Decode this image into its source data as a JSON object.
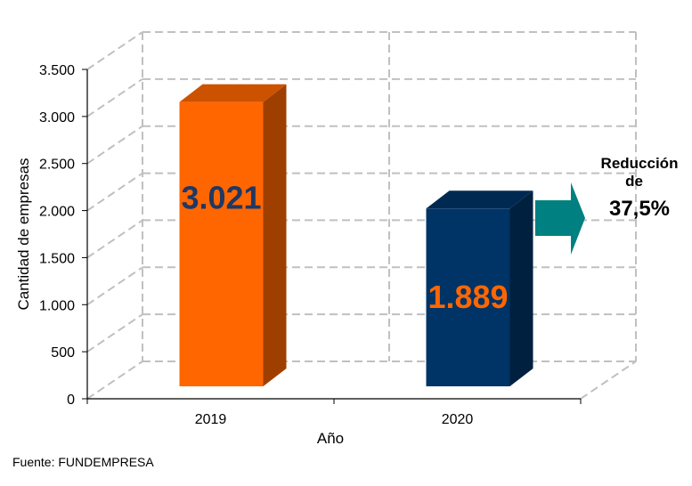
{
  "chart_data": {
    "type": "bar",
    "categories": [
      "2019",
      "2020"
    ],
    "values": [
      3021,
      1889
    ],
    "value_labels": [
      "3.021",
      "1.889"
    ],
    "ylabel": "Cantidad de empresas",
    "xlabel": "Año",
    "ylim": [
      0,
      3500
    ],
    "yticks": [
      0,
      500,
      1000,
      1500,
      2000,
      2500,
      3000,
      3500
    ],
    "ytick_labels": [
      "0",
      "500",
      "1.000",
      "1.500",
      "2.000",
      "2.500",
      "3.000",
      "3.500"
    ],
    "grid": true,
    "three_d": true,
    "bar_colors": [
      "#FF6600",
      "#003366"
    ],
    "label_colors": [
      "#1F3864",
      "#FF6600"
    ],
    "annotation": {
      "lines": [
        "Reducción",
        "de",
        "37,5%"
      ],
      "arrow_color": "#008080"
    }
  },
  "source": {
    "label": "Fuente:",
    "value": "FUNDEMPRESA"
  }
}
